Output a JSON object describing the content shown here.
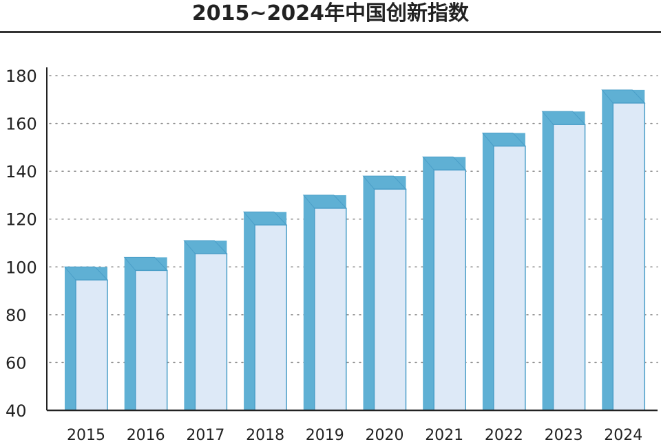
{
  "chart_data": {
    "type": "bar",
    "title": "2015~2024年中国创新指数",
    "categories": [
      "2015",
      "2016",
      "2017",
      "2018",
      "2019",
      "2020",
      "2021",
      "2022",
      "2023",
      "2024"
    ],
    "values": [
      100,
      104,
      111,
      123,
      130,
      138,
      146,
      156,
      165,
      174
    ],
    "ylim": [
      40,
      180
    ],
    "yticks": [
      40,
      60,
      80,
      100,
      120,
      140,
      160,
      180
    ],
    "grid": true,
    "colors": {
      "front": "#5fb0d4",
      "light": "#dde9f7",
      "outline": "#4a9ec8"
    }
  }
}
